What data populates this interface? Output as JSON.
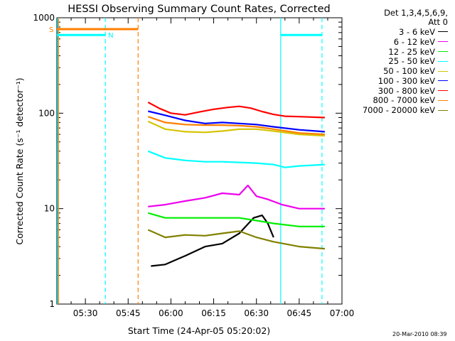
{
  "chart_data": {
    "type": "line",
    "title": "HESSI Observing Summary Count Rates, Corrected",
    "xlabel": "Start Time (24-Apr-05 05:20:02)",
    "ylabel": "Corrected Count Rate (s⁻¹ detector⁻¹)",
    "yscale": "log",
    "ylim": [
      1,
      1000
    ],
    "xlim_minutes": [
      0,
      100
    ],
    "x_ticks": [
      "05:30",
      "05:45",
      "06:00",
      "06:15",
      "06:30",
      "06:45",
      "07:00"
    ],
    "x_tick_minutes": [
      10,
      25,
      40,
      55,
      70,
      85,
      100
    ],
    "y_ticks": [
      "1",
      "10",
      "100",
      "1000"
    ],
    "y_tick_values": [
      1,
      10,
      100,
      1000
    ],
    "grid": false,
    "legend_header": [
      "Det 1,3,4,5,6,9,",
      "Att 0"
    ],
    "legend_position": "right-outside",
    "series": [
      {
        "name": "3 - 6 keV",
        "color": "#000000",
        "x": [
          33,
          38,
          45,
          52,
          58,
          64,
          69,
          72,
          74,
          76
        ],
        "y": [
          2.5,
          2.6,
          3.2,
          4.0,
          4.3,
          5.5,
          8.0,
          8.5,
          7.0,
          5.0
        ]
      },
      {
        "name": "6 - 12 keV",
        "color": "#ee00ee",
        "x": [
          32,
          38,
          45,
          52,
          58,
          64,
          67,
          70,
          74,
          79,
          85,
          94
        ],
        "y": [
          10.5,
          11,
          12,
          13,
          14.5,
          14,
          17.5,
          13.5,
          12.5,
          11,
          10,
          10
        ]
      },
      {
        "name": "12 - 25 keV",
        "color": "#00ee00",
        "x": [
          32,
          38,
          45,
          52,
          58,
          64,
          70,
          76,
          85,
          94
        ],
        "y": [
          9,
          8,
          8,
          8,
          8,
          8,
          7.5,
          7,
          6.5,
          6.5
        ]
      },
      {
        "name": "25 - 50 keV",
        "color": "#00ffff",
        "x": [
          32,
          38,
          45,
          52,
          58,
          64,
          70,
          76,
          80,
          85,
          94
        ],
        "y": [
          40,
          34,
          32,
          31,
          31,
          30.5,
          30,
          29,
          27,
          28,
          29
        ]
      },
      {
        "name": "50 - 100 keV",
        "color": "#d4c400",
        "x": [
          32,
          38,
          45,
          52,
          58,
          64,
          70,
          76,
          85,
          94
        ],
        "y": [
          82,
          68,
          64,
          63,
          65,
          68,
          68,
          65,
          60,
          58
        ]
      },
      {
        "name": "100 - 300 keV",
        "color": "#0000ff",
        "x": [
          32,
          38,
          45,
          52,
          58,
          64,
          70,
          76,
          85,
          94
        ],
        "y": [
          105,
          95,
          84,
          78,
          80,
          78,
          76,
          72,
          67,
          64
        ]
      },
      {
        "name": "300 - 800 keV",
        "color": "#ff0000",
        "x": [
          32,
          36,
          40,
          45,
          50,
          55,
          60,
          64,
          68,
          72,
          76,
          80,
          85,
          94
        ],
        "y": [
          130,
          112,
          100,
          96,
          103,
          110,
          115,
          118,
          113,
          104,
          97,
          93,
          92,
          90
        ]
      },
      {
        "name": "800 - 7000 keV",
        "color": "#ff7f00",
        "x": [
          32,
          38,
          45,
          52,
          58,
          64,
          70,
          76,
          85,
          94
        ],
        "y": [
          92,
          80,
          76,
          75,
          75,
          74,
          72,
          68,
          62,
          60
        ]
      },
      {
        "name": "7000 - 20000 keV",
        "color": "#808000",
        "x": [
          32,
          38,
          45,
          52,
          58,
          64,
          70,
          76,
          85,
          94
        ],
        "y": [
          6.0,
          5.0,
          5.3,
          5.2,
          5.5,
          5.8,
          5.0,
          4.5,
          4.0,
          3.8
        ]
      }
    ],
    "annotations": {
      "saa_marker": {
        "label": "S",
        "color": "#ff7f00",
        "x_start_min": 0,
        "x_end_min": 28.5,
        "level": 760
      },
      "night_marker": {
        "label": "N",
        "color": "#00ffff",
        "segments": [
          [
            0,
            17
          ],
          [
            78.5,
            93
          ]
        ],
        "level": 660
      },
      "vertical_lines": [
        {
          "min": 0.6,
          "color": "#ff7f00",
          "style": "solid"
        },
        {
          "min": 0,
          "color": "#00ffff",
          "style": "solid"
        },
        {
          "min": 17,
          "color": "#00ffff",
          "style": "dashed"
        },
        {
          "min": 28.5,
          "color": "#ff7f00",
          "style": "dashed"
        },
        {
          "min": 78.5,
          "color": "#00ffff",
          "style": "solid"
        },
        {
          "min": 93,
          "color": "#00ffff",
          "style": "dashed"
        }
      ]
    }
  },
  "footer_stamp": "20-Mar-2010 08:39"
}
